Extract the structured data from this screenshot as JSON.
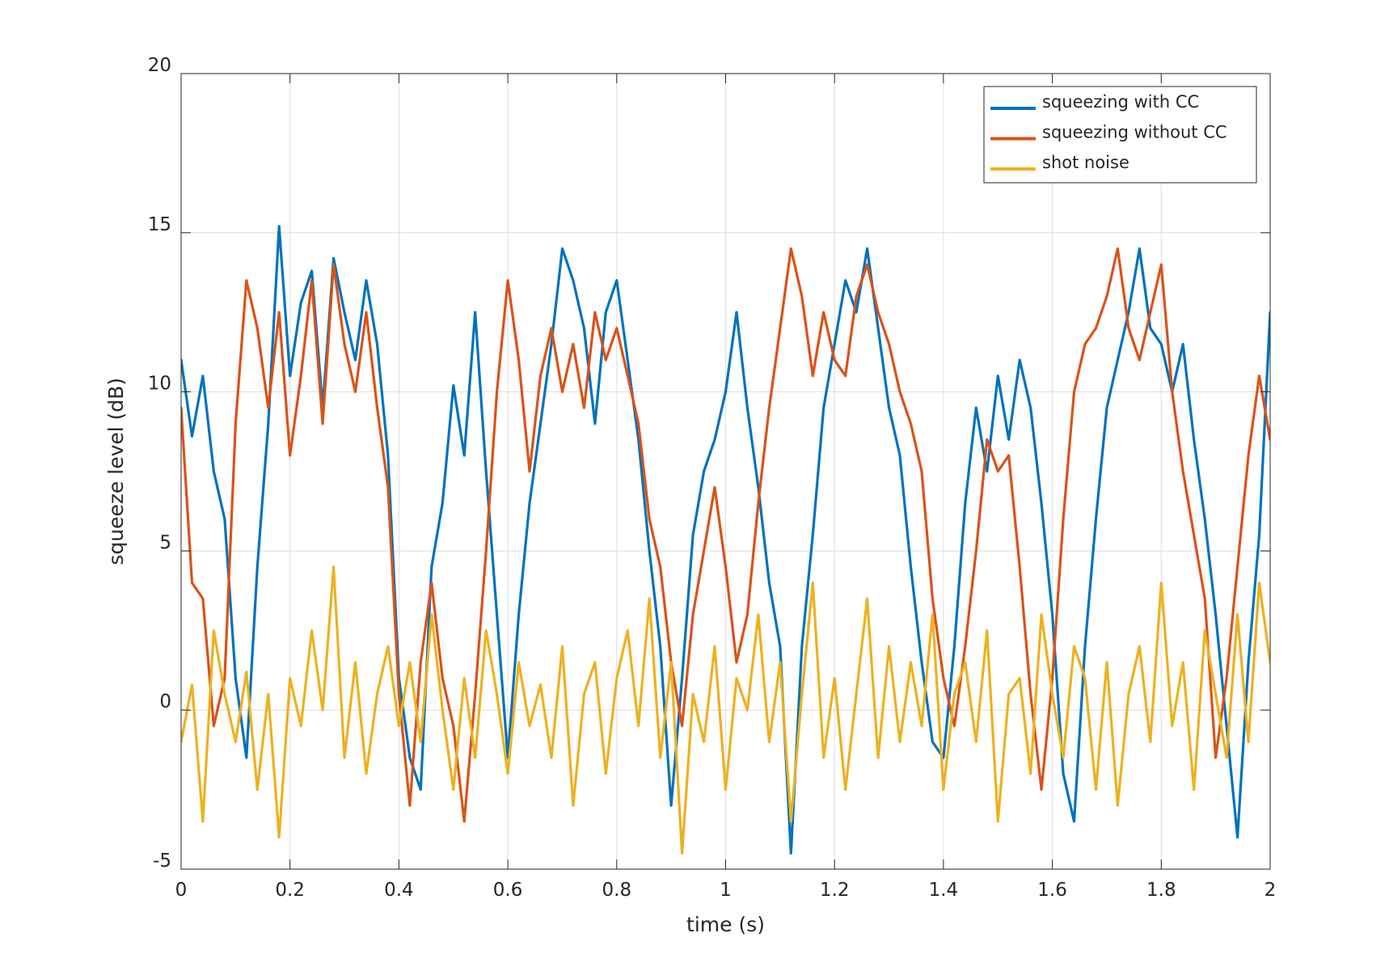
{
  "chart_data": {
    "type": "line",
    "title": "",
    "xlabel": "time (s)",
    "ylabel": "squeeze level (dB)",
    "xlim": [
      0,
      2
    ],
    "ylim": [
      -5,
      20
    ],
    "x_ticks": [
      0,
      0.2,
      0.4,
      0.6,
      0.8,
      1,
      1.2,
      1.4,
      1.6,
      1.8,
      2
    ],
    "x_tick_labels": [
      "0",
      "0.2",
      "0.4",
      "0.6",
      "0.8",
      "1",
      "1.2",
      "1.4",
      "1.6",
      "1.8",
      "2"
    ],
    "y_ticks": [
      -5,
      0,
      5,
      10,
      15,
      20
    ],
    "y_tick_labels": [
      "-5",
      "0",
      "5",
      "10",
      "15",
      "20"
    ],
    "grid": true,
    "legend_position": "top-right",
    "x": [
      0,
      0.02,
      0.04,
      0.06,
      0.08,
      0.1,
      0.12,
      0.14,
      0.16,
      0.18,
      0.2,
      0.22,
      0.24,
      0.26,
      0.28,
      0.3,
      0.32,
      0.34,
      0.36,
      0.38,
      0.4,
      0.42,
      0.44,
      0.46,
      0.48,
      0.5,
      0.52,
      0.54,
      0.56,
      0.58,
      0.6,
      0.62,
      0.64,
      0.66,
      0.68,
      0.7,
      0.72,
      0.74,
      0.76,
      0.78,
      0.8,
      0.82,
      0.84,
      0.86,
      0.88,
      0.9,
      0.92,
      0.94,
      0.96,
      0.98,
      1,
      1.02,
      1.04,
      1.06,
      1.08,
      1.1,
      1.12,
      1.14,
      1.16,
      1.18,
      1.2,
      1.22,
      1.24,
      1.26,
      1.28,
      1.3,
      1.32,
      1.34,
      1.36,
      1.38,
      1.4,
      1.42,
      1.44,
      1.46,
      1.48,
      1.5,
      1.52,
      1.54,
      1.56,
      1.58,
      1.6,
      1.62,
      1.64,
      1.66,
      1.68,
      1.7,
      1.72,
      1.74,
      1.76,
      1.78,
      1.8,
      1.82,
      1.84,
      1.86,
      1.88,
      1.9,
      1.92,
      1.94,
      1.96,
      1.98,
      2
    ],
    "series": [
      {
        "name": "squeezing with CC",
        "color": "#0072BD",
        "values": [
          11.0,
          8.6,
          10.5,
          7.5,
          6.0,
          1.0,
          -1.5,
          4.5,
          9.0,
          15.2,
          10.5,
          12.8,
          13.8,
          9.5,
          14.2,
          12.5,
          11.0,
          13.5,
          11.5,
          8.0,
          1.0,
          -1.5,
          -2.5,
          4.5,
          6.5,
          10.2,
          8.0,
          12.5,
          7.5,
          3.0,
          -1.5,
          3.0,
          6.5,
          9.0,
          11.5,
          14.5,
          13.5,
          12.0,
          9.0,
          12.5,
          13.5,
          11.0,
          8.5,
          5.0,
          2.0,
          -3.0,
          1.0,
          5.5,
          7.5,
          8.5,
          10.0,
          12.5,
          9.5,
          7.0,
          4.0,
          2.0,
          -4.5,
          2.0,
          5.5,
          9.5,
          11.5,
          13.5,
          12.5,
          14.5,
          12.0,
          9.5,
          8.0,
          4.5,
          1.5,
          -1.0,
          -1.5,
          2.0,
          6.5,
          9.5,
          7.5,
          10.5,
          8.5,
          11.0,
          9.5,
          6.5,
          3.0,
          -2.0,
          -3.5,
          2.0,
          6.0,
          9.5,
          11.0,
          12.5,
          14.5,
          12.0,
          11.5,
          10.0,
          11.5,
          8.5,
          6.0,
          3.0,
          -0.5,
          -4.0,
          1.5,
          5.5,
          12.5
        ]
      },
      {
        "name": "squeezing without CC",
        "color": "#D95319",
        "values": [
          9.5,
          4.0,
          3.5,
          -0.5,
          1.0,
          9.0,
          13.5,
          12.0,
          9.5,
          12.5,
          8.0,
          10.5,
          13.5,
          9.0,
          14.0,
          11.5,
          10.0,
          12.5,
          9.5,
          7.0,
          0.5,
          -3.0,
          1.5,
          4.0,
          1.0,
          -0.5,
          -3.5,
          0.5,
          5.0,
          10.0,
          13.5,
          11.0,
          7.5,
          10.5,
          12.0,
          10.0,
          11.5,
          9.5,
          12.5,
          11.0,
          12.0,
          10.5,
          9.0,
          6.0,
          4.5,
          1.5,
          -0.5,
          3.0,
          5.0,
          7.0,
          4.5,
          1.5,
          3.0,
          6.5,
          9.5,
          12.0,
          14.5,
          13.0,
          10.5,
          12.5,
          11.0,
          10.5,
          13.0,
          14.0,
          12.5,
          11.5,
          10.0,
          9.0,
          7.5,
          3.5,
          1.0,
          -0.5,
          2.0,
          5.0,
          8.5,
          7.5,
          8.0,
          4.5,
          0.5,
          -2.5,
          1.0,
          6.0,
          10.0,
          11.5,
          12.0,
          13.0,
          14.5,
          12.0,
          11.0,
          12.5,
          14.0,
          10.0,
          7.5,
          5.5,
          3.5,
          -1.5,
          1.0,
          4.5,
          8.0,
          10.5,
          8.5
        ]
      },
      {
        "name": "shot noise",
        "color": "#EDB120",
        "values": [
          -1.0,
          0.8,
          -3.5,
          2.5,
          0.5,
          -1.0,
          1.2,
          -2.5,
          0.5,
          -4.0,
          1.0,
          -0.5,
          2.5,
          0.0,
          4.5,
          -1.5,
          1.5,
          -2.0,
          0.5,
          2.0,
          -0.5,
          1.5,
          -1.0,
          3.0,
          0.0,
          -2.5,
          1.0,
          -1.5,
          2.5,
          0.5,
          -2.0,
          1.5,
          -0.5,
          0.8,
          -1.5,
          2.0,
          -3.0,
          0.5,
          1.5,
          -2.0,
          1.0,
          2.5,
          -0.5,
          3.5,
          -1.5,
          1.5,
          -4.5,
          0.5,
          -1.0,
          2.0,
          -2.5,
          1.0,
          0.0,
          3.0,
          -1.0,
          1.5,
          -3.5,
          0.5,
          4.0,
          -1.5,
          1.0,
          -2.5,
          0.5,
          3.5,
          -1.5,
          2.0,
          -1.0,
          1.5,
          -0.5,
          3.0,
          -2.5,
          0.5,
          1.5,
          -1.0,
          2.5,
          -3.5,
          0.5,
          1.0,
          -2.0,
          3.0,
          0.5,
          -1.5,
          2.0,
          1.0,
          -2.5,
          1.5,
          -3.0,
          0.5,
          2.0,
          -1.0,
          4.0,
          -0.5,
          1.5,
          -2.5,
          2.5,
          0.5,
          -1.5,
          3.0,
          -1.0,
          4.0,
          1.5
        ]
      }
    ]
  }
}
